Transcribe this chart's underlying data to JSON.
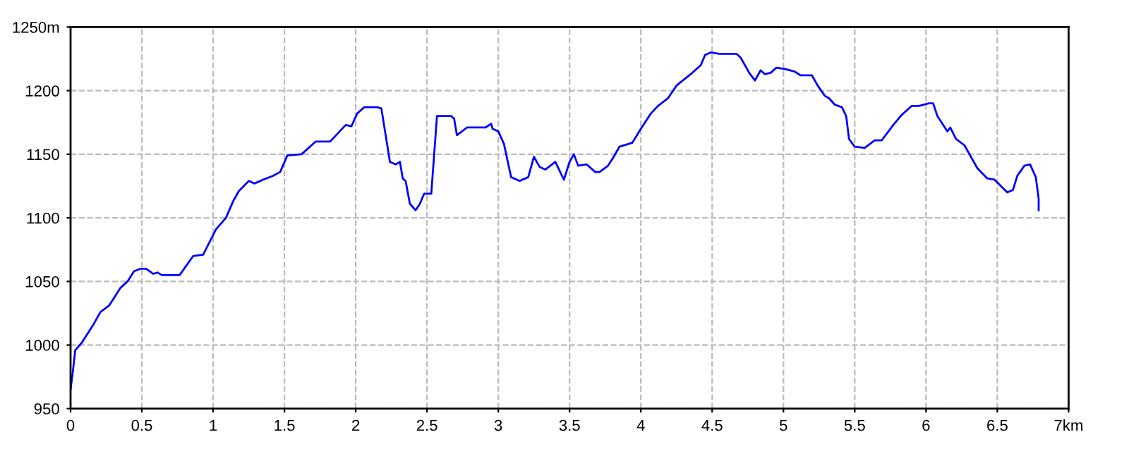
{
  "chart_data": {
    "type": "line",
    "x": [
      0,
      0.017,
      0.033,
      0.08,
      0.165,
      0.21,
      0.27,
      0.35,
      0.4,
      0.445,
      0.49,
      0.53,
      0.58,
      0.61,
      0.64,
      0.765,
      0.86,
      0.93,
      1.02,
      1.09,
      1.14,
      1.18,
      1.25,
      1.29,
      1.35,
      1.42,
      1.47,
      1.52,
      1.62,
      1.72,
      1.82,
      1.93,
      1.97,
      2.01,
      2.06,
      2.15,
      2.18,
      2.21,
      2.24,
      2.28,
      2.31,
      2.33,
      2.35,
      2.38,
      2.42,
      2.45,
      2.48,
      2.53,
      2.57,
      2.67,
      2.69,
      2.71,
      2.78,
      2.91,
      2.95,
      2.96,
      3.0,
      3.04,
      3.09,
      3.15,
      3.21,
      3.25,
      3.29,
      3.33,
      3.4,
      3.46,
      3.5,
      3.53,
      3.56,
      3.62,
      3.68,
      3.71,
      3.77,
      3.81,
      3.85,
      3.94,
      4.0,
      4.07,
      4.12,
      4.19,
      4.25,
      4.35,
      4.42,
      4.45,
      4.49,
      4.55,
      4.67,
      4.7,
      4.76,
      4.8,
      4.84,
      4.87,
      4.91,
      4.95,
      5.01,
      5.08,
      5.12,
      5.2,
      5.24,
      5.29,
      5.32,
      5.36,
      5.41,
      5.44,
      5.46,
      5.5,
      5.57,
      5.64,
      5.69,
      5.77,
      5.83,
      5.9,
      5.95,
      6.02,
      6.05,
      6.08,
      6.15,
      6.17,
      6.21,
      6.27,
      6.36,
      6.43,
      6.48,
      6.57,
      6.61,
      6.64,
      6.69,
      6.73,
      6.77,
      6.79,
      6.79
    ],
    "series": [
      {
        "color": "#0000ff",
        "values": [
          965,
          980,
          996,
          1002,
          1017,
          1026,
          1031,
          1045,
          1050,
          1058,
          1060,
          1060,
          1056,
          1057,
          1055,
          1055,
          1070,
          1071,
          1091,
          1100,
          1113,
          1121,
          1129,
          1127,
          1130,
          1133,
          1136,
          1149,
          1150,
          1160,
          1160,
          1173,
          1172,
          1182,
          1187,
          1187,
          1186,
          1165,
          1144,
          1142,
          1144,
          1131,
          1129,
          1111,
          1106,
          1111,
          1119,
          1119,
          1180,
          1180,
          1178,
          1165,
          1171,
          1171,
          1174,
          1170,
          1168,
          1158,
          1132,
          1129,
          1132,
          1148,
          1140,
          1138,
          1144,
          1130,
          1144,
          1150,
          1141,
          1142,
          1136,
          1136,
          1141,
          1148,
          1156,
          1159,
          1170,
          1182,
          1188,
          1194,
          1204,
          1213,
          1220,
          1228,
          1230,
          1229,
          1229,
          1226,
          1214,
          1208,
          1216,
          1213,
          1214,
          1218,
          1217,
          1215,
          1212,
          1212,
          1204,
          1196,
          1194,
          1189,
          1187,
          1180,
          1162,
          1156,
          1155,
          1161,
          1161,
          1173,
          1181,
          1188,
          1188,
          1190,
          1190,
          1180,
          1168,
          1171,
          1162,
          1157,
          1139,
          1131,
          1130,
          1120,
          1122,
          1133,
          1141,
          1142,
          1132,
          1115,
          1106
        ]
      }
    ],
    "xlim": [
      0,
      7
    ],
    "ylim": [
      950,
      1250
    ],
    "xticks": [
      0,
      0.5,
      1,
      1.5,
      2,
      2.5,
      3,
      3.5,
      4,
      4.5,
      5,
      5.5,
      6,
      6.5,
      {
        "value": 7,
        "label": "7km"
      }
    ],
    "yticks": [
      950,
      1000,
      1050,
      1100,
      1150,
      1200,
      {
        "value": 1250,
        "label": "1250m"
      }
    ],
    "grid": true,
    "marker": "none",
    "line_style": "solid"
  }
}
